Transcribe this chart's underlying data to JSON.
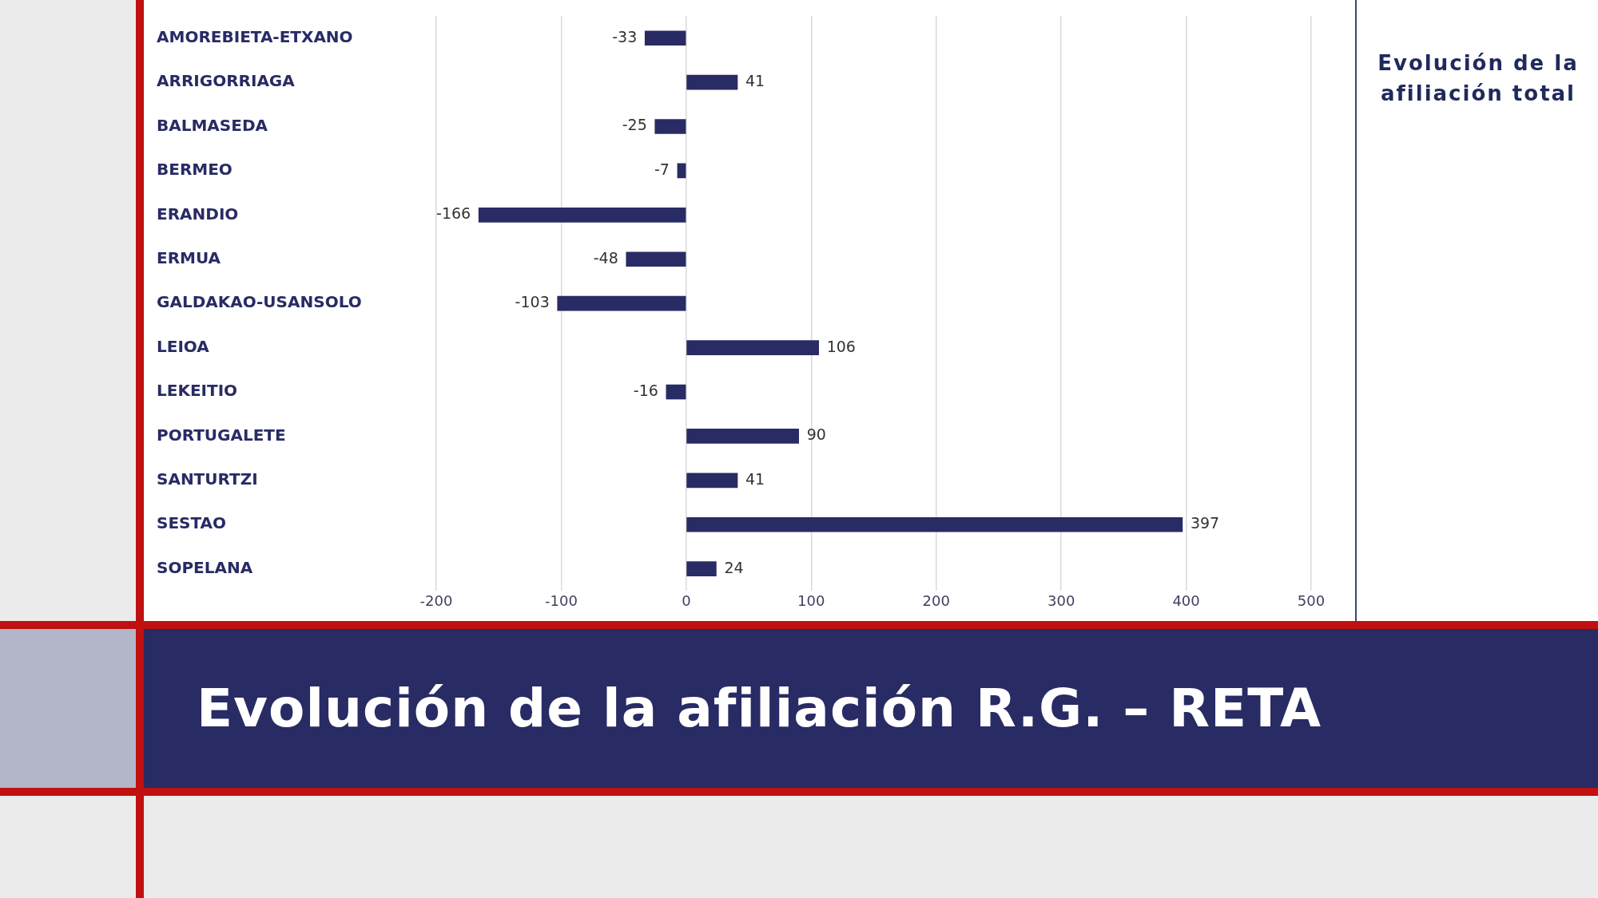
{
  "chart_data": {
    "type": "bar",
    "orientation": "horizontal",
    "title": "Evolución de la afiliación R.G. – RETA",
    "subtitle": "Evolución de la afiliación total",
    "categories": [
      "AMOREBIETA-ETXANO",
      "ARRIGORRIAGA",
      "BALMASEDA",
      "BERMEO",
      "ERANDIO",
      "ERMUA",
      "GALDAKAO-USANSOLO",
      "LEIOA",
      "LEKEITIO",
      "PORTUGALETE",
      "SANTURTZI",
      "SESTAO",
      "SOPELANA"
    ],
    "values": [
      -33,
      41,
      -25,
      -7,
      -166,
      -48,
      -103,
      106,
      -16,
      90,
      41,
      397,
      24
    ],
    "color": "#282b64",
    "xlim": [
      -200,
      500
    ],
    "xticks": [
      -200,
      -100,
      0,
      100,
      200,
      300,
      400,
      500
    ],
    "grid": "x",
    "data_labels": true
  }
}
